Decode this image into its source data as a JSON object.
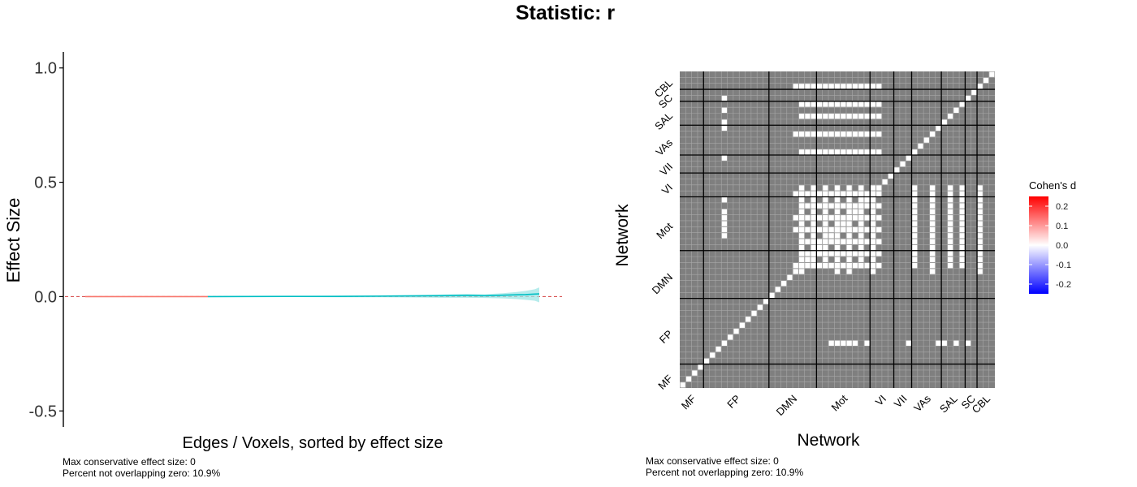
{
  "title": "Statistic: r",
  "chart_data": [
    {
      "type": "line",
      "name": "effect-size-plot",
      "xlabel": "Edges / Voxels, sorted by effect size",
      "ylabel": "Effect Size",
      "ylim": [
        -0.57,
        1.07
      ],
      "yticks": [
        -0.5,
        0.0,
        0.5,
        1.0
      ],
      "ytick_labels": [
        "-0.5",
        "0.0",
        "0.5",
        "1.0"
      ],
      "reference_line": 0,
      "grid": false,
      "series": [
        {
          "color": "#f8766d",
          "x": [
            0,
            0.27
          ],
          "y": [
            0,
            0
          ]
        },
        {
          "color": "#00bfc4",
          "x": [
            0.27,
            0.35,
            0.45,
            0.55,
            0.65,
            0.72,
            0.78,
            0.84,
            0.88,
            0.92,
            0.95,
            0.97,
            0.99,
            1.0
          ],
          "y": [
            0,
            0.0005,
            0.001,
            0.001,
            0.002,
            0.003,
            0.004,
            0.005,
            0.004,
            0.006,
            0.008,
            0.009,
            0.011,
            0.012
          ],
          "upper": [
            0,
            0.002,
            0.003,
            0.004,
            0.006,
            0.007,
            0.009,
            0.012,
            0.01,
            0.015,
            0.02,
            0.025,
            0.032,
            0.04
          ],
          "lower": [
            0,
            -0.002,
            -0.002,
            -0.003,
            -0.003,
            -0.004,
            -0.005,
            -0.005,
            -0.006,
            -0.008,
            -0.011,
            -0.014,
            -0.018,
            -0.025
          ]
        }
      ],
      "caption_lines": [
        "Max conservative effect size: 0",
        "Percent not overlapping zero: 10.9%"
      ]
    },
    {
      "type": "heatmap",
      "name": "network-matrix",
      "xlabel": "Network",
      "ylabel": "Network",
      "networks": [
        "MF",
        "FP",
        "DMN",
        "Mot",
        "VI",
        "VII",
        "VAs",
        "SAL",
        "SC",
        "CBL"
      ],
      "network_sizes": [
        4,
        11,
        8,
        9,
        4,
        3,
        5,
        4,
        2,
        3
      ],
      "legend": {
        "title": "Cohen's d",
        "ticks": [
          0.2,
          0.1,
          0.0,
          -0.1,
          -0.2
        ],
        "tick_labels": [
          "0.2",
          "0.1",
          "0.0",
          "-0.1",
          "-0.2"
        ],
        "range": [
          -0.25,
          0.25
        ],
        "position": "right"
      },
      "colors": {
        "neutral": "#7f7f7f",
        "highlight": "#ffffff",
        "high": "#ff0000",
        "low": "#0000ff"
      },
      "highlighted_cells": [
        [
          7,
          25
        ],
        [
          7,
          26
        ],
        [
          7,
          27
        ],
        [
          7,
          28
        ],
        [
          7,
          29
        ],
        [
          7,
          31
        ],
        [
          7,
          38
        ],
        [
          7,
          43
        ],
        [
          7,
          44
        ],
        [
          7,
          46
        ],
        [
          7,
          48
        ],
        [
          7,
          53
        ],
        [
          20,
          19
        ],
        [
          20,
          20
        ],
        [
          20,
          21
        ],
        [
          20,
          22
        ],
        [
          20,
          23
        ],
        [
          20,
          24
        ],
        [
          20,
          25
        ],
        [
          20,
          26
        ],
        [
          20,
          27
        ],
        [
          20,
          28
        ],
        [
          20,
          29
        ],
        [
          20,
          30
        ],
        [
          20,
          31
        ],
        [
          20,
          32
        ],
        [
          20,
          33
        ],
        [
          22,
          20
        ],
        [
          22,
          21
        ],
        [
          22,
          22
        ],
        [
          22,
          23
        ],
        [
          22,
          24
        ],
        [
          22,
          25
        ],
        [
          22,
          26
        ],
        [
          22,
          27
        ],
        [
          22,
          28
        ],
        [
          22,
          29
        ],
        [
          22,
          30
        ],
        [
          22,
          31
        ],
        [
          22,
          32
        ],
        [
          22,
          33
        ],
        [
          24,
          20
        ],
        [
          24,
          21
        ],
        [
          24,
          22
        ],
        [
          24,
          23
        ],
        [
          24,
          24
        ],
        [
          24,
          25
        ],
        [
          24,
          26
        ],
        [
          24,
          27
        ],
        [
          24,
          28
        ],
        [
          24,
          29
        ],
        [
          24,
          30
        ],
        [
          24,
          31
        ],
        [
          24,
          32
        ],
        [
          24,
          33
        ],
        [
          26,
          19
        ],
        [
          26,
          20
        ],
        [
          26,
          21
        ],
        [
          26,
          22
        ],
        [
          26,
          23
        ],
        [
          26,
          24
        ],
        [
          26,
          25
        ],
        [
          26,
          26
        ],
        [
          26,
          27
        ],
        [
          26,
          28
        ],
        [
          26,
          29
        ],
        [
          26,
          30
        ],
        [
          26,
          31
        ],
        [
          26,
          32
        ],
        [
          26,
          33
        ],
        [
          28,
          19
        ],
        [
          28,
          20
        ],
        [
          28,
          21
        ],
        [
          28,
          22
        ],
        [
          28,
          23
        ],
        [
          28,
          24
        ],
        [
          28,
          25
        ],
        [
          28,
          26
        ],
        [
          28,
          27
        ],
        [
          28,
          28
        ],
        [
          28,
          29
        ],
        [
          28,
          30
        ],
        [
          28,
          31
        ],
        [
          28,
          32
        ],
        [
          28,
          33
        ],
        [
          30,
          20
        ],
        [
          30,
          21
        ],
        [
          30,
          22
        ],
        [
          30,
          23
        ],
        [
          30,
          24
        ],
        [
          30,
          25
        ],
        [
          30,
          26
        ],
        [
          30,
          27
        ],
        [
          30,
          28
        ],
        [
          30,
          29
        ],
        [
          30,
          30
        ],
        [
          30,
          31
        ],
        [
          30,
          32
        ],
        [
          30,
          33
        ],
        [
          32,
          19
        ],
        [
          32,
          20
        ],
        [
          32,
          21
        ],
        [
          32,
          22
        ],
        [
          32,
          23
        ],
        [
          32,
          24
        ],
        [
          32,
          25
        ],
        [
          32,
          26
        ],
        [
          32,
          27
        ],
        [
          32,
          28
        ],
        [
          32,
          29
        ],
        [
          32,
          30
        ],
        [
          32,
          31
        ],
        [
          32,
          32
        ],
        [
          32,
          33
        ],
        [
          39,
          20
        ],
        [
          39,
          21
        ],
        [
          39,
          22
        ],
        [
          39,
          23
        ],
        [
          39,
          24
        ],
        [
          39,
          25
        ],
        [
          39,
          26
        ],
        [
          39,
          27
        ],
        [
          39,
          28
        ],
        [
          39,
          29
        ],
        [
          39,
          30
        ],
        [
          39,
          31
        ],
        [
          39,
          32
        ],
        [
          39,
          33
        ],
        [
          42,
          19
        ],
        [
          42,
          20
        ],
        [
          42,
          21
        ],
        [
          42,
          22
        ],
        [
          42,
          23
        ],
        [
          42,
          24
        ],
        [
          42,
          25
        ],
        [
          42,
          26
        ],
        [
          42,
          27
        ],
        [
          42,
          28
        ],
        [
          42,
          29
        ],
        [
          42,
          30
        ],
        [
          42,
          31
        ],
        [
          42,
          32
        ],
        [
          42,
          33
        ],
        [
          45,
          20
        ],
        [
          45,
          21
        ],
        [
          45,
          22
        ],
        [
          45,
          23
        ],
        [
          45,
          24
        ],
        [
          45,
          25
        ],
        [
          45,
          26
        ],
        [
          45,
          27
        ],
        [
          45,
          28
        ],
        [
          45,
          29
        ],
        [
          45,
          30
        ],
        [
          45,
          31
        ],
        [
          45,
          32
        ],
        [
          45,
          33
        ],
        [
          47,
          20
        ],
        [
          47,
          21
        ],
        [
          47,
          22
        ],
        [
          47,
          23
        ],
        [
          47,
          24
        ],
        [
          47,
          25
        ],
        [
          47,
          26
        ],
        [
          47,
          27
        ],
        [
          47,
          28
        ],
        [
          47,
          29
        ],
        [
          47,
          30
        ],
        [
          47,
          31
        ],
        [
          47,
          32
        ],
        [
          47,
          33
        ],
        [
          50,
          19
        ],
        [
          50,
          20
        ],
        [
          50,
          21
        ],
        [
          50,
          22
        ],
        [
          50,
          23
        ],
        [
          50,
          24
        ],
        [
          50,
          25
        ],
        [
          50,
          26
        ],
        [
          50,
          27
        ],
        [
          50,
          28
        ],
        [
          50,
          29
        ],
        [
          50,
          30
        ],
        [
          50,
          31
        ],
        [
          50,
          32
        ],
        [
          50,
          33
        ]
      ],
      "caption_lines": [
        "Max conservative effect size: 0",
        "Percent not overlapping zero: 10.9%"
      ]
    }
  ]
}
